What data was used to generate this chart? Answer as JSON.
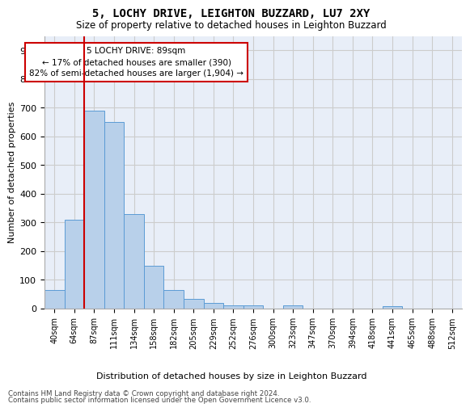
{
  "title": "5, LOCHY DRIVE, LEIGHTON BUZZARD, LU7 2XY",
  "subtitle": "Size of property relative to detached houses in Leighton Buzzard",
  "xlabel": "Distribution of detached houses by size in Leighton Buzzard",
  "ylabel": "Number of detached properties",
  "bar_labels": [
    "40sqm",
    "64sqm",
    "87sqm",
    "111sqm",
    "134sqm",
    "158sqm",
    "182sqm",
    "205sqm",
    "229sqm",
    "252sqm",
    "276sqm",
    "300sqm",
    "323sqm",
    "347sqm",
    "370sqm",
    "394sqm",
    "418sqm",
    "441sqm",
    "465sqm",
    "488sqm",
    "512sqm"
  ],
  "bar_values": [
    65,
    310,
    690,
    650,
    330,
    150,
    65,
    35,
    20,
    12,
    12,
    0,
    10,
    0,
    0,
    0,
    0,
    8,
    0,
    0,
    0
  ],
  "bar_color": "#b8d0ea",
  "bar_edge_color": "#5b9bd5",
  "grid_color": "#cccccc",
  "background_color": "#e8eef8",
  "red_line_index": 2,
  "annotation_text": "5 LOCHY DRIVE: 89sqm\n← 17% of detached houses are smaller (390)\n82% of semi-detached houses are larger (1,904) →",
  "annotation_box_color": "#ffffff",
  "annotation_box_edge": "#cc0000",
  "footer_line1": "Contains HM Land Registry data © Crown copyright and database right 2024.",
  "footer_line2": "Contains public sector information licensed under the Open Government Licence v3.0.",
  "ylim": [
    0,
    950
  ],
  "yticks": [
    0,
    100,
    200,
    300,
    400,
    500,
    600,
    700,
    800,
    900
  ]
}
